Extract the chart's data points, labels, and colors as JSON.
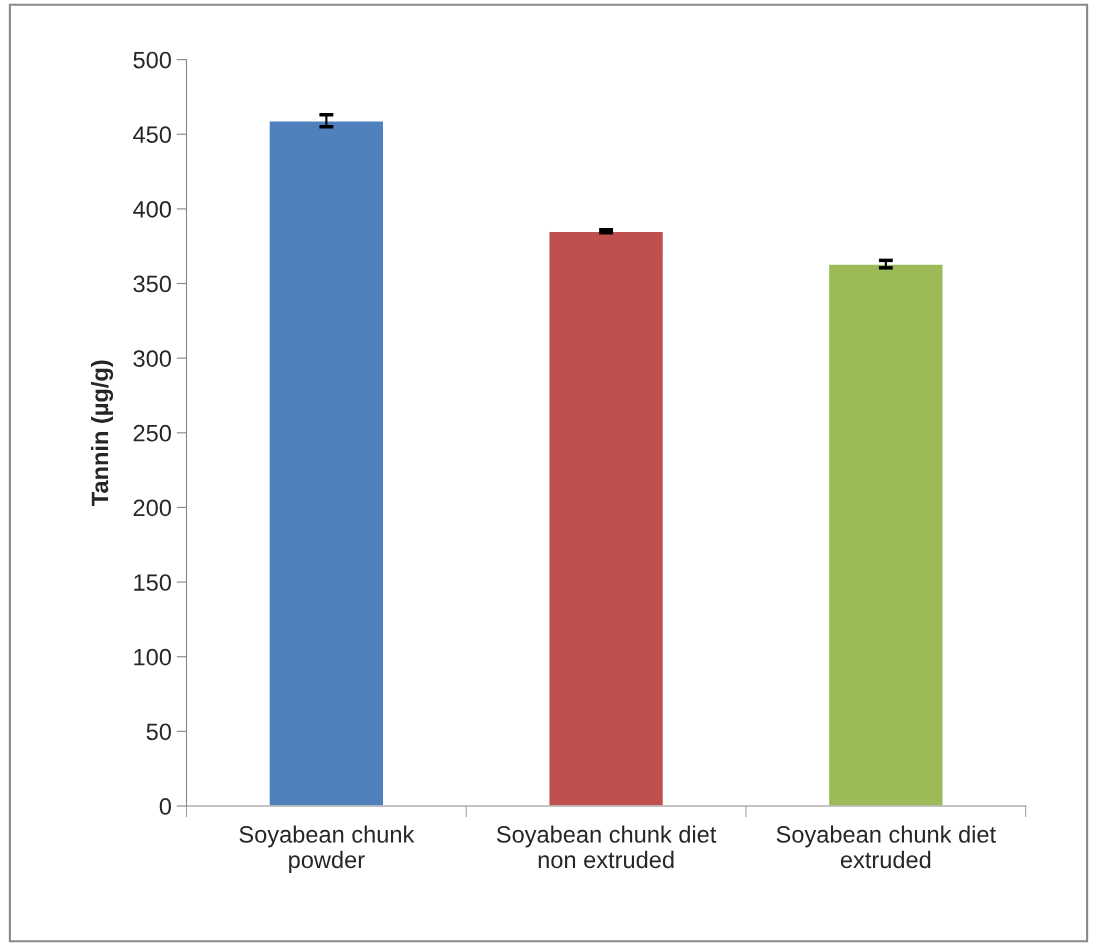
{
  "chart_data": {
    "type": "bar",
    "ylabel": "Tannin (µg/g)",
    "categories": [
      "Soyabean chunk\npowder",
      "Soyabean chunk diet\nnon extruded",
      "Soyabean chunk diet\nextruded"
    ],
    "values": [
      459,
      385,
      363
    ],
    "errors": [
      4,
      1,
      2.5
    ],
    "colors": [
      "#4f81bd",
      "#c0504d",
      "#9bbb59"
    ],
    "ylim": [
      0,
      500
    ],
    "yticks": [
      0,
      50,
      100,
      150,
      200,
      250,
      300,
      350,
      400,
      450,
      500
    ],
    "grid": false
  }
}
